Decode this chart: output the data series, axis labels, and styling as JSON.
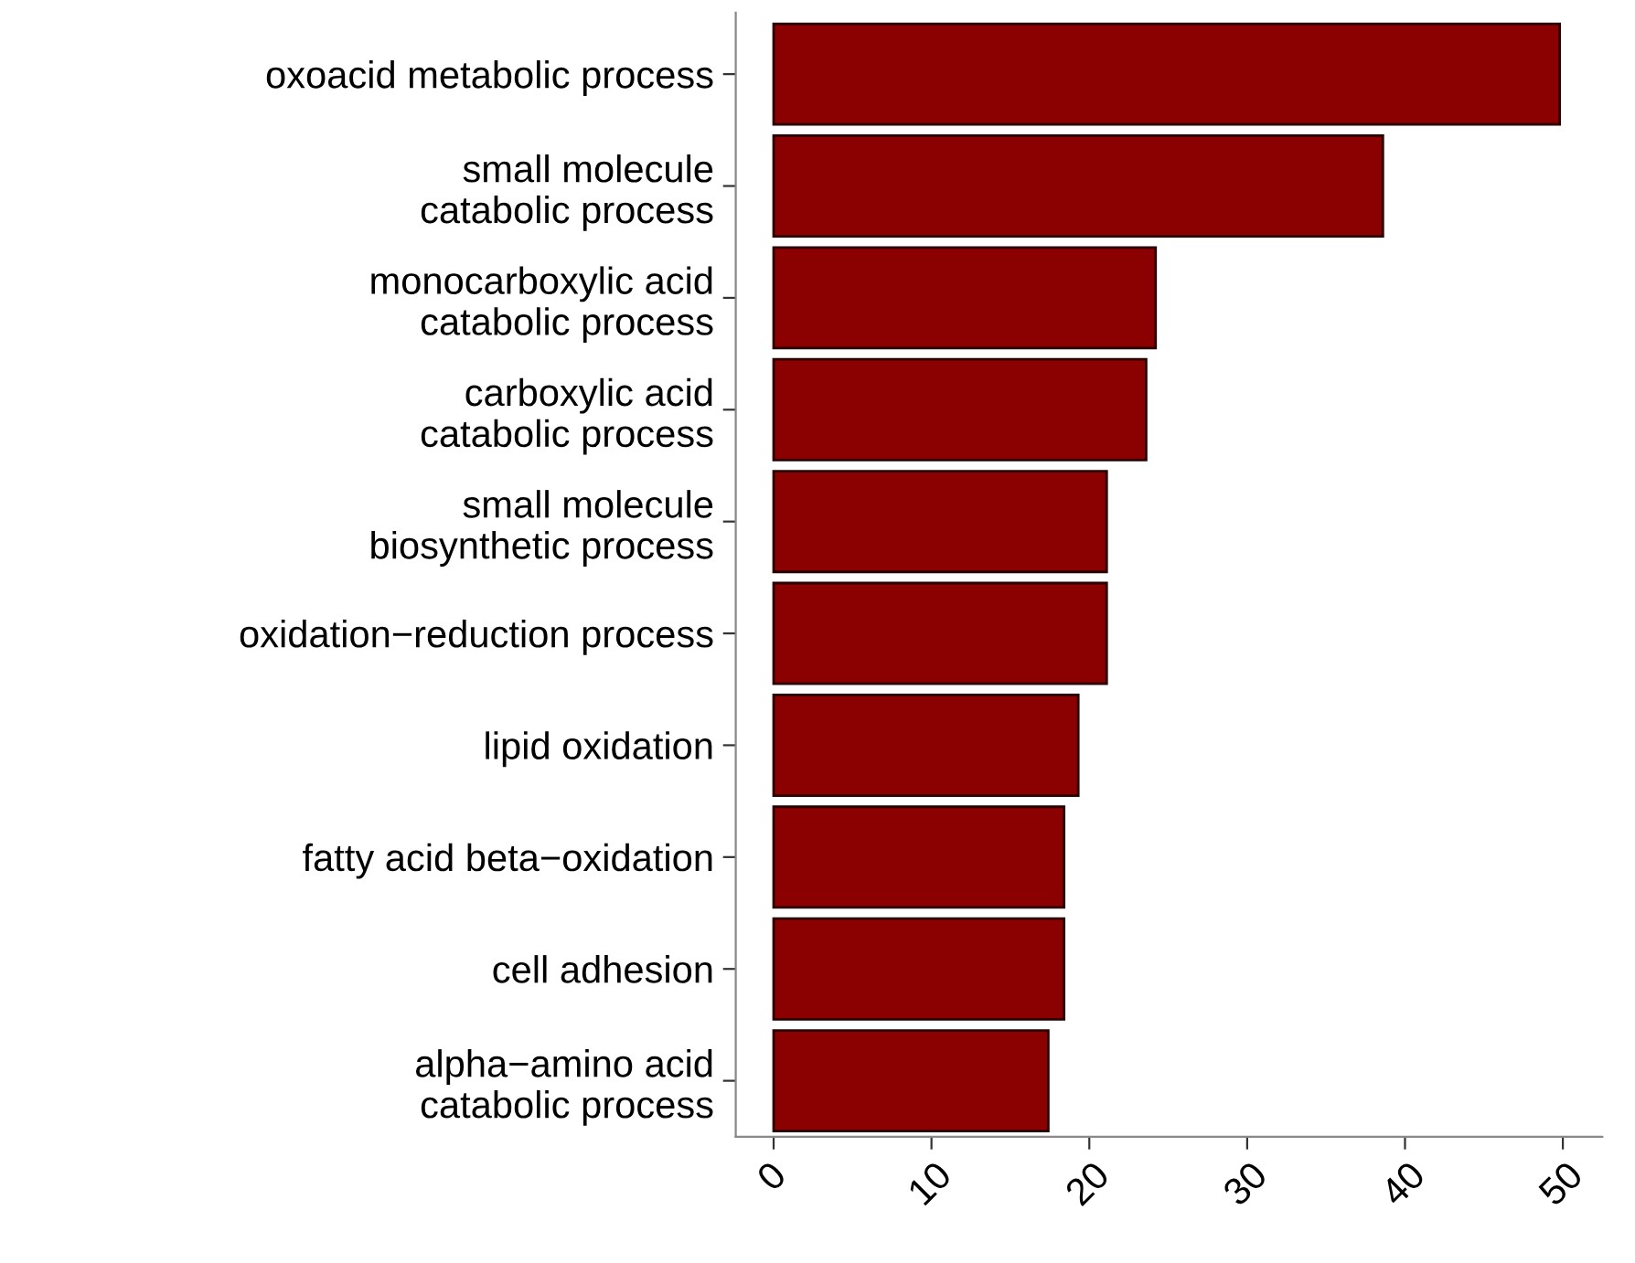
{
  "chart_data": {
    "type": "bar",
    "orientation": "horizontal",
    "categories": [
      "oxoacid metabolic process",
      "small molecule\ncatabolic process",
      "monocarboxylic acid\ncatabolic process",
      "carboxylic acid\ncatabolic process",
      "small molecule\nbiosynthetic process",
      "oxidation−reduction process",
      "lipid oxidation",
      "fatty acid beta−oxidation",
      "cell adhesion",
      "alpha−amino acid\ncatabolic process"
    ],
    "values": [
      49.8,
      38.6,
      24.2,
      23.6,
      21.1,
      21.1,
      19.3,
      18.4,
      18.4,
      17.4
    ],
    "color": "#8b0000",
    "xlim": [
      -2.4,
      52.5
    ],
    "xticks": [
      0,
      10,
      20,
      30,
      40,
      50
    ],
    "grid": false
  }
}
